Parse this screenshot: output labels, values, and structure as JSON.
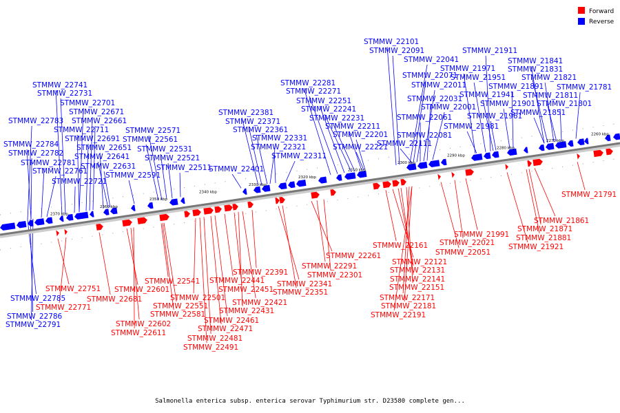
{
  "caption": "Salmonella enterica subsp. enterica serovar Typhimurium str. D23580 complete gen...",
  "legend": [
    {
      "label": "Forward",
      "color": "#ff0000"
    },
    {
      "label": "Reverse",
      "color": "#0000ff"
    }
  ],
  "colors": {
    "forward": "#ff0000",
    "reverse": "#0000ff",
    "backbone": "#777777"
  },
  "scale_ticks": [
    "2370 kbp",
    "2360 kbp",
    "2350 kbp",
    "2340 kbp",
    "2330 kbp",
    "2320 kbp",
    "2310 kbp",
    "2300 kbp",
    "2290 kbp",
    "2280 kbp",
    "2270 kbp",
    "2260 kbp"
  ],
  "reverse_labels": [
    "STMMW_22101",
    "STMMW_22091",
    "STMMW_21911",
    "STMMW_22041",
    "STMMW_21841",
    "STMMW_21971",
    "STMMW_21831",
    "STMMW_22071",
    "STMMW_21951",
    "STMMW_21821",
    "STMMW_22741",
    "STMMW_22281",
    "STMMW_22011",
    "STMMW_21891",
    "STMMW_21781",
    "STMMW_22731",
    "STMMW_22271",
    "STMMW_21941",
    "STMMW_21811",
    "STMMW_22031",
    "STMMW_22701",
    "STMMW_22251",
    "STMMW_22001",
    "STMMW_21901",
    "STMMW_21801",
    "STMMW_22671",
    "STMMW_22381",
    "STMMW_22241",
    "STMMW_21961",
    "STMMW_21851",
    "STMMW_22783",
    "STMMW_22661",
    "STMMW_22371",
    "STMMW_22231",
    "STMMW_22061",
    "STMMW_21981",
    "STMMW_22711",
    "STMMW_22571",
    "STMMW_22361",
    "STMMW_22211",
    "STMMW_22201",
    "STMMW_22081",
    "STMMW_22691",
    "STMMW_22561",
    "STMMW_22331",
    "STMMW_22784",
    "STMMW_22651",
    "STMMW_22321",
    "STMMW_22221",
    "STMMW_22111",
    "STMMW_22782",
    "STMMW_22641",
    "STMMW_22531",
    "STMMW_22311",
    "STMMW_22781",
    "STMMW_22631",
    "STMMW_22521",
    "STMMW_22761",
    "STMMW_22401",
    "STMMW_22511",
    "STMMW_22591",
    "STMMW_22721",
    "STMMW_22785",
    "STMMW_22786",
    "STMMW_22791"
  ],
  "forward_labels": [
    "STMMW_21791",
    "STMMW_21861",
    "STMMW_21871",
    "STMMW_21991",
    "STMMW_21881",
    "STMMW_22021",
    "STMMW_21921",
    "STMMW_22161",
    "STMMW_22051",
    "STMMW_22261",
    "STMMW_22121",
    "STMMW_22291",
    "STMMW_22391",
    "STMMW_22131",
    "STMMW_22301",
    "STMMW_22541",
    "STMMW_22441",
    "STMMW_22141",
    "STMMW_22341",
    "STMMW_22751",
    "STMMW_22681",
    "STMMW_22601",
    "STMMW_22451",
    "STMMW_22351",
    "STMMW_22151",
    "STMMW_22501",
    "STMMW_22171",
    "STMMW_22771",
    "STMMW_22551",
    "STMMW_22421",
    "STMMW_22181",
    "STMMW_22581",
    "STMMW_22431",
    "STMMW_22191",
    "STMMW_22461",
    "STMMW_22602",
    "STMMW_22471",
    "STMMW_22611",
    "STMMW_22481",
    "STMMW_22491"
  ]
}
